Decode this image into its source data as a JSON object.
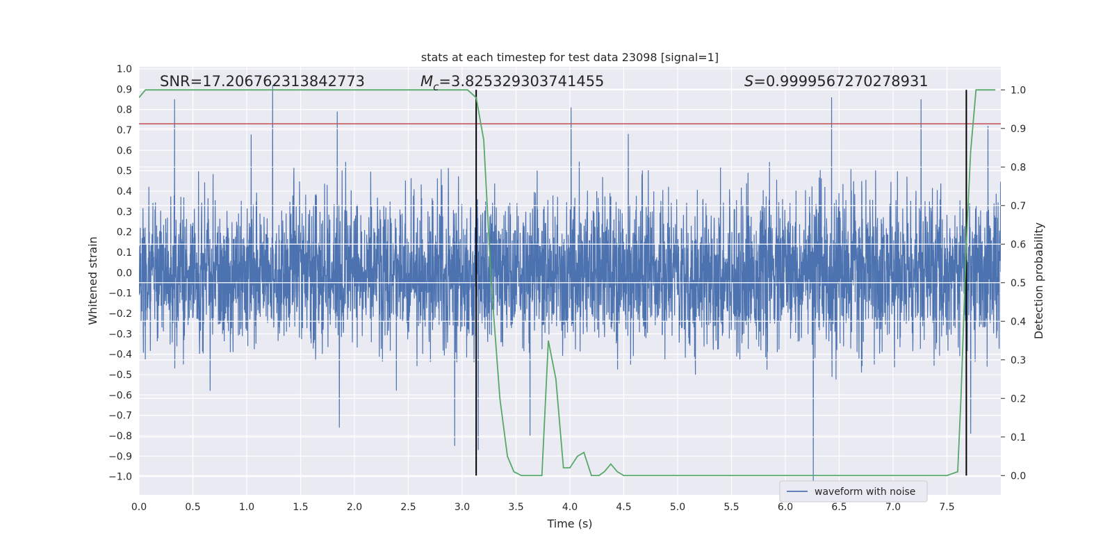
{
  "chart_data": {
    "type": "line",
    "title": "stats at each timestep for test data 23098 [signal=1]",
    "xlabel": "Time (s)",
    "ylabel": "Whitened strain",
    "ylabel_right": "Detection probability",
    "xlim": [
      0.0,
      8.0
    ],
    "ylim": [
      -1.09,
      1.01
    ],
    "ylim_right": [
      -0.05,
      1.06
    ],
    "x_ticks": [
      "0.0",
      "0.5",
      "1.0",
      "1.5",
      "2.0",
      "2.5",
      "3.0",
      "3.5",
      "4.0",
      "4.5",
      "5.0",
      "5.5",
      "6.0",
      "6.5",
      "7.0",
      "7.5"
    ],
    "y_ticks": [
      "1.0",
      "0.9",
      "0.8",
      "0.7",
      "0.6",
      "0.5",
      "0.4",
      "0.3",
      "0.2",
      "0.1",
      "0.0",
      "−0.1",
      "−0.2",
      "−0.3",
      "−0.4",
      "−0.5",
      "−0.6",
      "−0.7",
      "−0.8",
      "−0.9",
      "−1.0"
    ],
    "y_right_ticks": [
      "1.0",
      "0.9",
      "0.8",
      "0.7",
      "0.6",
      "0.5",
      "0.4",
      "0.3",
      "0.2",
      "0.1",
      "0.0"
    ],
    "annotations": {
      "snr": "SNR=17.206762313842773",
      "mc_symbol": "M",
      "mc_sub": "c",
      "mc_value": "=3.825329303741455",
      "s_symbol": "S",
      "s_value": "=0.9999567270278931"
    },
    "threshold_line": {
      "y": 0.73,
      "color": "#c44e52"
    },
    "vertical_lines": [
      3.13,
      7.68
    ],
    "waveform": {
      "name": "waveform with noise",
      "color": "#4c72b0",
      "sample_count": 4096,
      "envelope": {
        "upper_typical": 0.45,
        "lower_typical": -0.45
      },
      "notable_peaks": [
        {
          "x": 0.33,
          "y": 0.85
        },
        {
          "x": 1.24,
          "y": 0.92
        },
        {
          "x": 1.84,
          "y": 0.79
        },
        {
          "x": 4.01,
          "y": 0.81
        },
        {
          "x": 6.43,
          "y": 0.86
        },
        {
          "x": 7.26,
          "y": 0.85
        },
        {
          "x": 7.88,
          "y": 0.72
        }
      ],
      "notable_troughs": [
        {
          "x": 1.86,
          "y": -0.76
        },
        {
          "x": 2.93,
          "y": -0.85
        },
        {
          "x": 3.15,
          "y": -0.87
        },
        {
          "x": 3.63,
          "y": -0.8
        },
        {
          "x": 6.26,
          "y": -1.02
        },
        {
          "x": 7.72,
          "y": -0.79
        }
      ]
    },
    "probability": {
      "name": "detection probability",
      "color": "#55a868",
      "x": [
        0.0,
        0.06,
        0.2,
        0.6,
        1.0,
        1.5,
        2.0,
        2.5,
        2.9,
        3.05,
        3.13,
        3.2,
        3.27,
        3.35,
        3.42,
        3.48,
        3.55,
        3.62,
        3.68,
        3.74,
        3.8,
        3.87,
        3.94,
        4.0,
        4.07,
        4.13,
        4.2,
        4.27,
        4.32,
        4.38,
        4.44,
        4.5,
        4.6,
        4.8,
        5.0,
        5.5,
        6.0,
        6.5,
        7.0,
        7.3,
        7.5,
        7.6,
        7.63,
        7.68,
        7.72,
        7.77,
        7.83,
        7.95
      ],
      "y": [
        0.98,
        1.0,
        1.0,
        1.0,
        1.0,
        1.0,
        1.0,
        1.0,
        1.0,
        1.0,
        0.98,
        0.87,
        0.5,
        0.2,
        0.05,
        0.01,
        0.0,
        0.0,
        0.0,
        0.0,
        0.35,
        0.25,
        0.02,
        0.02,
        0.05,
        0.06,
        0.0,
        0.0,
        0.01,
        0.03,
        0.01,
        0.0,
        0.0,
        0.0,
        0.0,
        0.0,
        0.0,
        0.0,
        0.0,
        0.0,
        0.0,
        0.01,
        0.2,
        0.6,
        0.84,
        1.0,
        1.0,
        1.0
      ]
    },
    "legend": {
      "label": "waveform with noise",
      "loc": "lower-right"
    }
  }
}
